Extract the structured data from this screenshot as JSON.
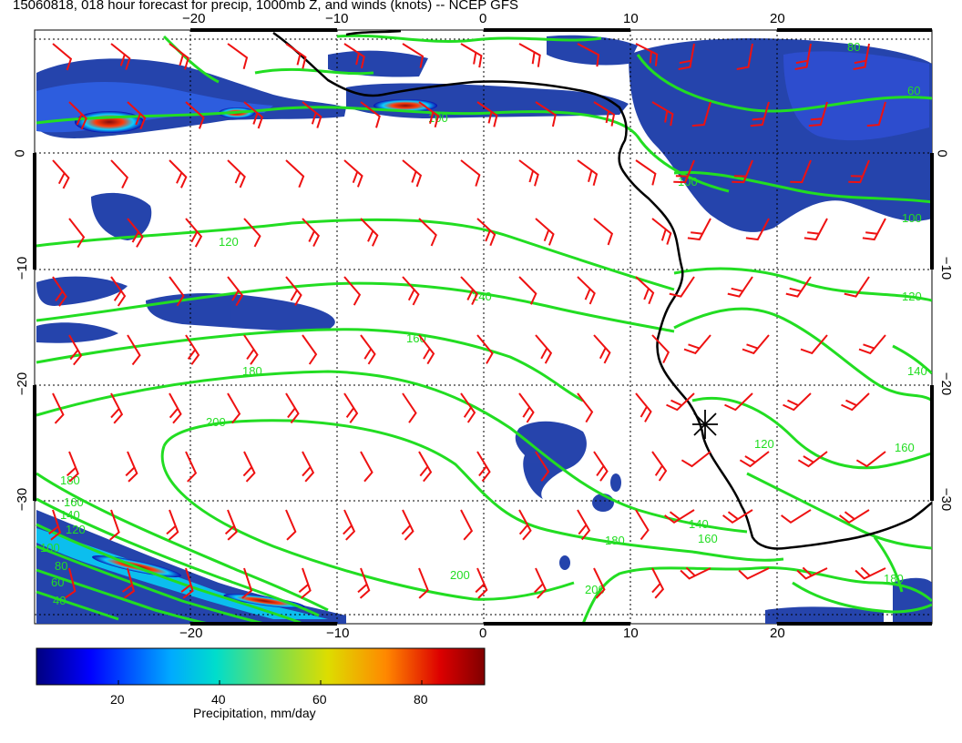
{
  "title": "15060818, 018 hour forecast for precip, 1000mb Z, and winds (knots) -- NCEP GFS",
  "axes": {
    "lon_ticks": [
      "−20",
      "−10",
      "0",
      "10",
      "20"
    ],
    "lat_ticks": [
      "0",
      "−10",
      "−20",
      "−30"
    ]
  },
  "contour_labels": [
    "100",
    "100",
    "120",
    "140",
    "160",
    "180",
    "200",
    "120",
    "140",
    "160",
    "180",
    "200",
    "200",
    "40",
    "60",
    "80",
    "100",
    "120",
    "140",
    "160",
    "180",
    "60",
    "80",
    "100",
    "120",
    "140",
    "160",
    "180"
  ],
  "colorbar": {
    "label": "Precipitation, mm/day",
    "ticks": [
      "20",
      "40",
      "60",
      "80"
    ]
  },
  "colors": {
    "coast": "#000000",
    "contour": "#22dd22",
    "contour_label": "#22dd22",
    "wind": "#ee1111",
    "grid": "#000000"
  }
}
